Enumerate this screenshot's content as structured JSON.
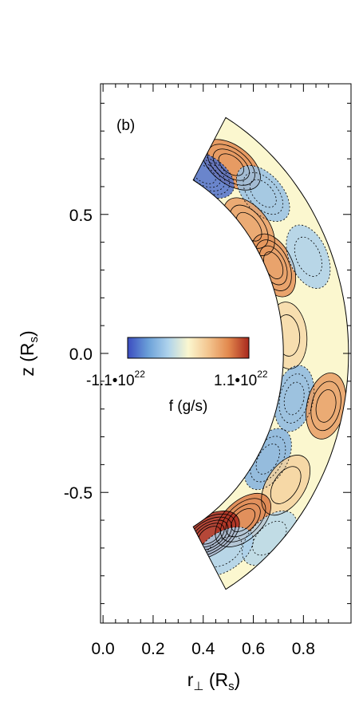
{
  "chart_data": {
    "type": "heatmap",
    "panel_label": "(b)",
    "xlabel": {
      "main": "r",
      "sub1": "⊥",
      "paren_open": " (R",
      "sub2": "s",
      "paren_close": ")"
    },
    "ylabel": {
      "main": "z (R",
      "sub": "s",
      "paren_close": ")"
    },
    "xlim": [
      -0.01,
      0.99
    ],
    "ylim": [
      -0.97,
      0.97
    ],
    "x_ticks": [
      {
        "value": 0.0,
        "label": "0.0"
      },
      {
        "value": 0.2,
        "label": "0.2"
      },
      {
        "value": 0.4,
        "label": "0.4"
      },
      {
        "value": 0.6,
        "label": "0.6"
      },
      {
        "value": 0.8,
        "label": "0.8"
      }
    ],
    "y_ticks": [
      {
        "value": -0.5,
        "label": "-0.5"
      },
      {
        "value": 0.0,
        "label": "0.0"
      },
      {
        "value": 0.5,
        "label": "0.5"
      }
    ],
    "x_minor_step": 0.05,
    "y_minor_step": 0.1,
    "domain": {
      "shape": "spherical shell sector",
      "r_inner": 0.72,
      "r_outer": 0.98,
      "latitude_deg": [
        -60,
        60
      ]
    },
    "colorbar": {
      "label": "f (g/s)",
      "min_label_base": "-1.1•10",
      "min_label_exp": "22",
      "max_label_base": "1.1•10",
      "max_label_exp": "22",
      "min": -1.1e+22,
      "max": 1.1e+22,
      "colors": [
        "#3b4cc0",
        "#6a9fd8",
        "#aed3ec",
        "#fbf7cf",
        "#f3c58f",
        "#e2884d",
        "#a8281d"
      ]
    },
    "cells": [
      {
        "r": 0.85,
        "lat": 53,
        "value": 0.65
      },
      {
        "r": 0.76,
        "lat": 58,
        "value": -0.85
      },
      {
        "r": 0.86,
        "lat": 42,
        "value": -0.45
      },
      {
        "r": 0.74,
        "lat": 38,
        "value": 0.55
      },
      {
        "r": 0.75,
        "lat": 25,
        "value": 0.6
      },
      {
        "r": 0.89,
        "lat": 23,
        "value": -0.35
      },
      {
        "r": 0.74,
        "lat": 5,
        "value": 0.2
      },
      {
        "r": 0.78,
        "lat": -12,
        "value": -0.5
      },
      {
        "r": 0.91,
        "lat": -12,
        "value": 0.55
      },
      {
        "r": 0.76,
        "lat": -30,
        "value": -0.55
      },
      {
        "r": 0.87,
        "lat": -33,
        "value": 0.25
      },
      {
        "r": 0.82,
        "lat": -47,
        "value": 0.7
      },
      {
        "r": 0.94,
        "lat": -45,
        "value": -0.3
      },
      {
        "r": 0.78,
        "lat": -57,
        "value": 1.0
      },
      {
        "r": 0.86,
        "lat": -56,
        "value": -0.35
      }
    ]
  }
}
